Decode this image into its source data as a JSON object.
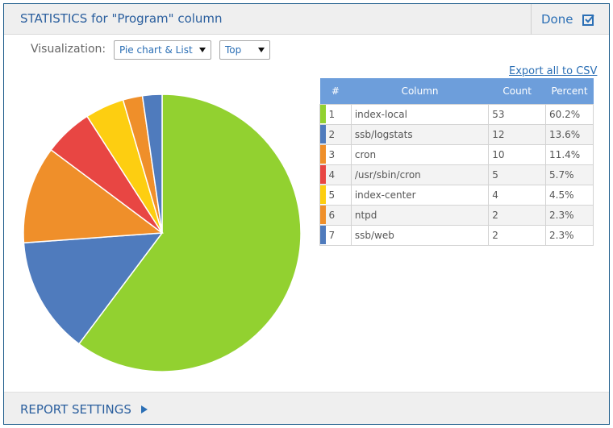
{
  "header": {
    "title": "STATISTICS for \"Program\" column",
    "done_label": "Done"
  },
  "controls": {
    "visualization_label": "Visualization:",
    "visualization_value": "Pie chart & List",
    "order_value": "Top"
  },
  "export_label": "Export all to CSV",
  "table": {
    "headers": [
      "#",
      "Column",
      "Count",
      "Percent"
    ],
    "rows": [
      {
        "rank": "1",
        "name": "index-local",
        "count": "53",
        "percent": "60.2%",
        "color": "#92d130"
      },
      {
        "rank": "2",
        "name": "ssb/logstats",
        "count": "12",
        "percent": "13.6%",
        "color": "#4f7bbd"
      },
      {
        "rank": "3",
        "name": "cron",
        "count": "10",
        "percent": "11.4%",
        "color": "#ef8f2a"
      },
      {
        "rank": "4",
        "name": "/usr/sbin/cron",
        "count": "5",
        "percent": "5.7%",
        "color": "#e84643"
      },
      {
        "rank": "5",
        "name": "index-center",
        "count": "4",
        "percent": "4.5%",
        "color": "#fdce11"
      },
      {
        "rank": "6",
        "name": "ntpd",
        "count": "2",
        "percent": "2.3%",
        "color": "#ef8f2a"
      },
      {
        "rank": "7",
        "name": "ssb/web",
        "count": "2",
        "percent": "2.3%",
        "color": "#4f7bbd"
      }
    ]
  },
  "chart_data": {
    "type": "pie",
    "categories": [
      "index-local",
      "ssb/logstats",
      "cron",
      "/usr/sbin/cron",
      "index-center",
      "ntpd",
      "ssb/web"
    ],
    "values": [
      53,
      12,
      10,
      5,
      4,
      2,
      2
    ],
    "colors": [
      "#92d130",
      "#4f7bbd",
      "#ef8f2a",
      "#e84643",
      "#fdce11",
      "#ef8f2a",
      "#4f7bbd"
    ]
  },
  "footer": {
    "report_settings_label": "REPORT SETTINGS"
  }
}
